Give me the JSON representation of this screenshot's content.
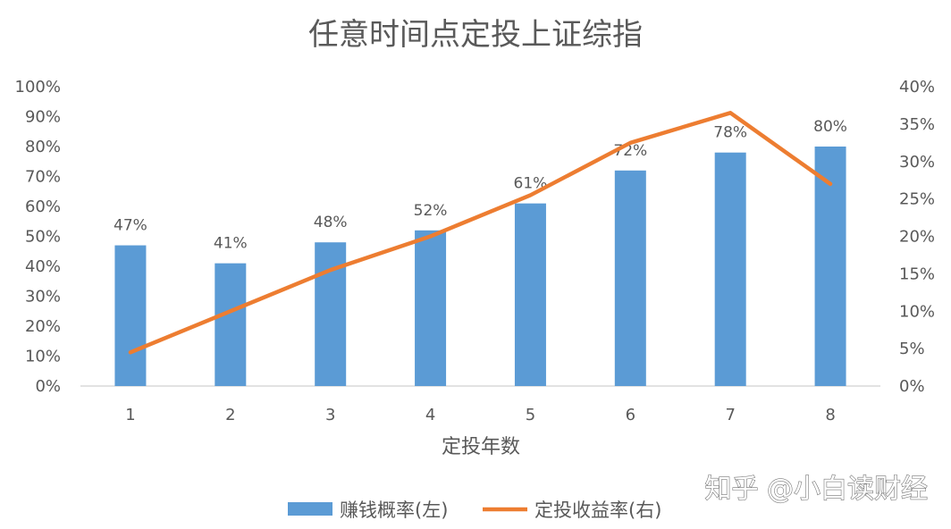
{
  "chart_data": {
    "type": "bar",
    "title": "任意时间点定投上证综指",
    "xlabel": "定投年数",
    "categories": [
      "1",
      "2",
      "3",
      "4",
      "5",
      "6",
      "7",
      "8"
    ],
    "series": [
      {
        "name": "赚钱概率(左)",
        "kind": "bar",
        "axis": "left",
        "color": "#5b9bd5",
        "values": [
          47,
          41,
          48,
          52,
          61,
          72,
          78,
          80
        ],
        "data_labels": [
          "47%",
          "41%",
          "48%",
          "52%",
          "61%",
          "72%",
          "78%",
          "80%"
        ]
      },
      {
        "name": "定投收益率(右)",
        "kind": "line",
        "axis": "right",
        "color": "#ed7d31",
        "values": [
          4.5,
          10,
          15.5,
          20,
          25.5,
          32.5,
          36.5,
          27
        ]
      }
    ],
    "y_left": {
      "ylim": [
        0,
        100
      ],
      "ticks": [
        "0%",
        "10%",
        "20%",
        "30%",
        "40%",
        "50%",
        "60%",
        "70%",
        "80%",
        "90%",
        "100%"
      ]
    },
    "y_right": {
      "ylim": [
        0,
        40
      ],
      "ticks": [
        "0%",
        "5%",
        "10%",
        "15%",
        "20%",
        "25%",
        "30%",
        "35%",
        "40%"
      ]
    },
    "grid": false,
    "legend_position": "bottom"
  },
  "watermark": "知乎 @小白读财经"
}
